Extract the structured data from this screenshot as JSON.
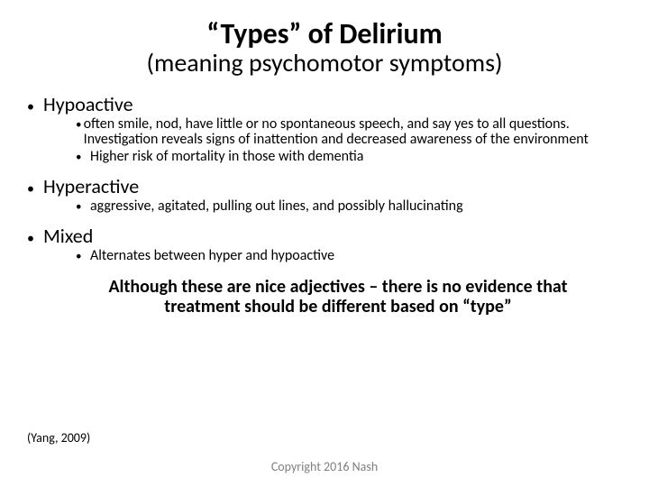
{
  "title": {
    "main": "“Types” of Delirium",
    "sub": "(meaning psychomotor symptoms)"
  },
  "colors": {
    "text": "#000000",
    "background": "#ffffff",
    "muted": "#808080"
  },
  "fontsize": {
    "title_main": 32,
    "title_sub": 28,
    "level1": 22,
    "level2": 16,
    "conclusion": 20,
    "citation": 14,
    "copyright": 14
  },
  "bullets": [
    {
      "label": "Hypoactive",
      "sub": [
        "often smile, nod, have little or no spontaneous speech, and say yes to all questions. Investigation reveals signs of inattention and decreased awareness of the environment",
        "Higher risk of mortality in those with dementia"
      ]
    },
    {
      "label": "Hyperactive",
      "sub": [
        "aggressive, agitated, pulling out lines, and possibly hallucinating"
      ]
    },
    {
      "label": "Mixed",
      "sub": [
        "Alternates between hyper and hypoactive"
      ]
    }
  ],
  "conclusion": "Although these are nice adjectives – there is no evidence that treatment should be different based on “type”",
  "citation": "(Yang, 2009)",
  "copyright": "Copyright 2016 Nash"
}
